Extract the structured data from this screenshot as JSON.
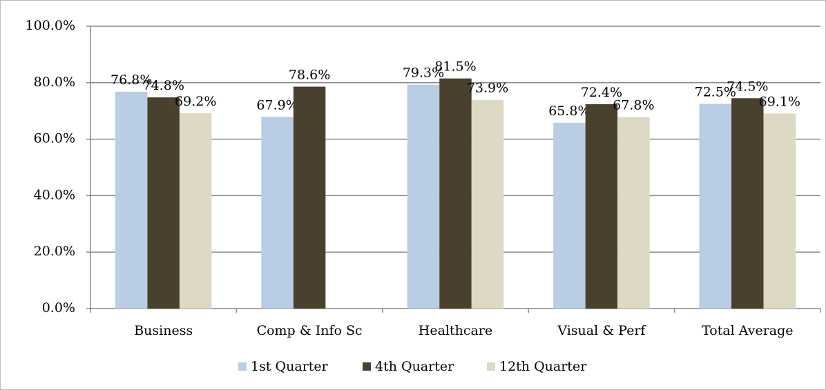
{
  "chart_data": {
    "type": "bar",
    "categories": [
      "Business",
      "Comp & Info Sc",
      "Healthcare",
      "Visual & Perf",
      "Total Average"
    ],
    "series": [
      {
        "name": "1st Quarter",
        "color": "#b9cde5",
        "values": [
          76.8,
          67.9,
          79.3,
          65.8,
          72.5
        ],
        "value_labels": [
          "76.8%",
          "67.9%",
          "79.3%",
          "65.8%",
          "72.5%"
        ]
      },
      {
        "name": "4th Quarter",
        "color": "#49412d",
        "values": [
          74.8,
          78.6,
          81.5,
          72.4,
          74.5
        ],
        "value_labels": [
          "74.8%",
          "78.6%",
          "81.5%",
          "72.4%",
          "74.5%"
        ]
      },
      {
        "name": "12th Quarter",
        "color": "#ddd9c4",
        "values": [
          69.2,
          null,
          73.9,
          67.8,
          69.1
        ],
        "value_labels": [
          "69.2%",
          null,
          "73.9%",
          "67.8%",
          "69.1%"
        ]
      }
    ],
    "ylim": [
      0,
      100
    ],
    "yticks": [
      {
        "value": 0,
        "label": "0.0%"
      },
      {
        "value": 20,
        "label": "20.0%"
      },
      {
        "value": 40,
        "label": "40.0%"
      },
      {
        "value": 60,
        "label": "60.0%"
      },
      {
        "value": 80,
        "label": "80.0%"
      },
      {
        "value": 100,
        "label": "100.0%"
      }
    ],
    "grid": true,
    "legend": "bottom"
  }
}
